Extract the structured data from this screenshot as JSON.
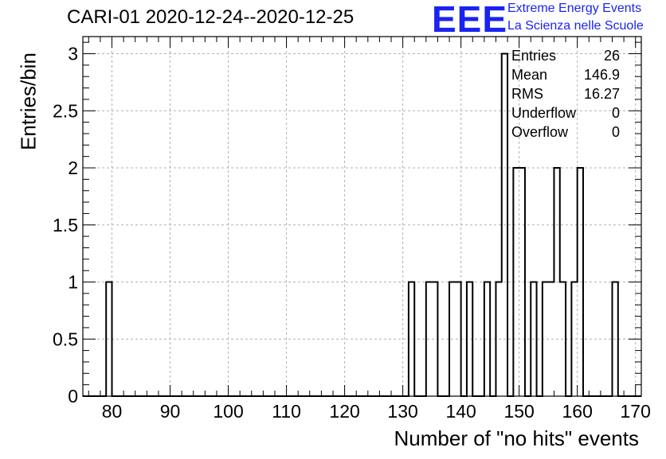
{
  "title": "CARI-01 2020-12-24--2020-12-25",
  "logo": {
    "text": "EEE",
    "line1": "Extreme Energy Events",
    "line2": "La Scienza nelle Scuole",
    "color": "#1a24f0"
  },
  "stats": [
    {
      "label": "Entries",
      "value": "26"
    },
    {
      "label": "Mean",
      "value": "146.9"
    },
    {
      "label": "RMS",
      "value": "16.27"
    },
    {
      "label": "Underflow",
      "value": "0"
    },
    {
      "label": "Overflow",
      "value": "0"
    }
  ],
  "chart_data": {
    "type": "bar",
    "title": "CARI-01 2020-12-24--2020-12-25",
    "xlabel": "Number of \"no hits\" events",
    "ylabel": "Entries/bin",
    "xlim": [
      75,
      171
    ],
    "ylim": [
      0,
      3.15
    ],
    "bin_width": 1,
    "x_ticks": [
      80,
      90,
      100,
      110,
      120,
      130,
      140,
      150,
      160,
      170
    ],
    "y_ticks": [
      0,
      0.5,
      1,
      1.5,
      2,
      2.5,
      3
    ],
    "y_tick_labels": [
      "0",
      "0.5",
      "1",
      "1.5",
      "2",
      "2.5",
      "3"
    ],
    "grid": true,
    "stats_box_position": "top-right",
    "bins": [
      {
        "x": 79,
        "count": 1
      },
      {
        "x": 131,
        "count": 1
      },
      {
        "x": 134,
        "count": 1
      },
      {
        "x": 135,
        "count": 1
      },
      {
        "x": 138,
        "count": 1
      },
      {
        "x": 139,
        "count": 1
      },
      {
        "x": 141,
        "count": 1
      },
      {
        "x": 144,
        "count": 1
      },
      {
        "x": 146,
        "count": 1
      },
      {
        "x": 147,
        "count": 3
      },
      {
        "x": 149,
        "count": 2
      },
      {
        "x": 150,
        "count": 2
      },
      {
        "x": 152,
        "count": 1
      },
      {
        "x": 154,
        "count": 1
      },
      {
        "x": 155,
        "count": 1
      },
      {
        "x": 156,
        "count": 2
      },
      {
        "x": 157,
        "count": 1
      },
      {
        "x": 159,
        "count": 1
      },
      {
        "x": 160,
        "count": 2
      },
      {
        "x": 166,
        "count": 1
      }
    ]
  }
}
